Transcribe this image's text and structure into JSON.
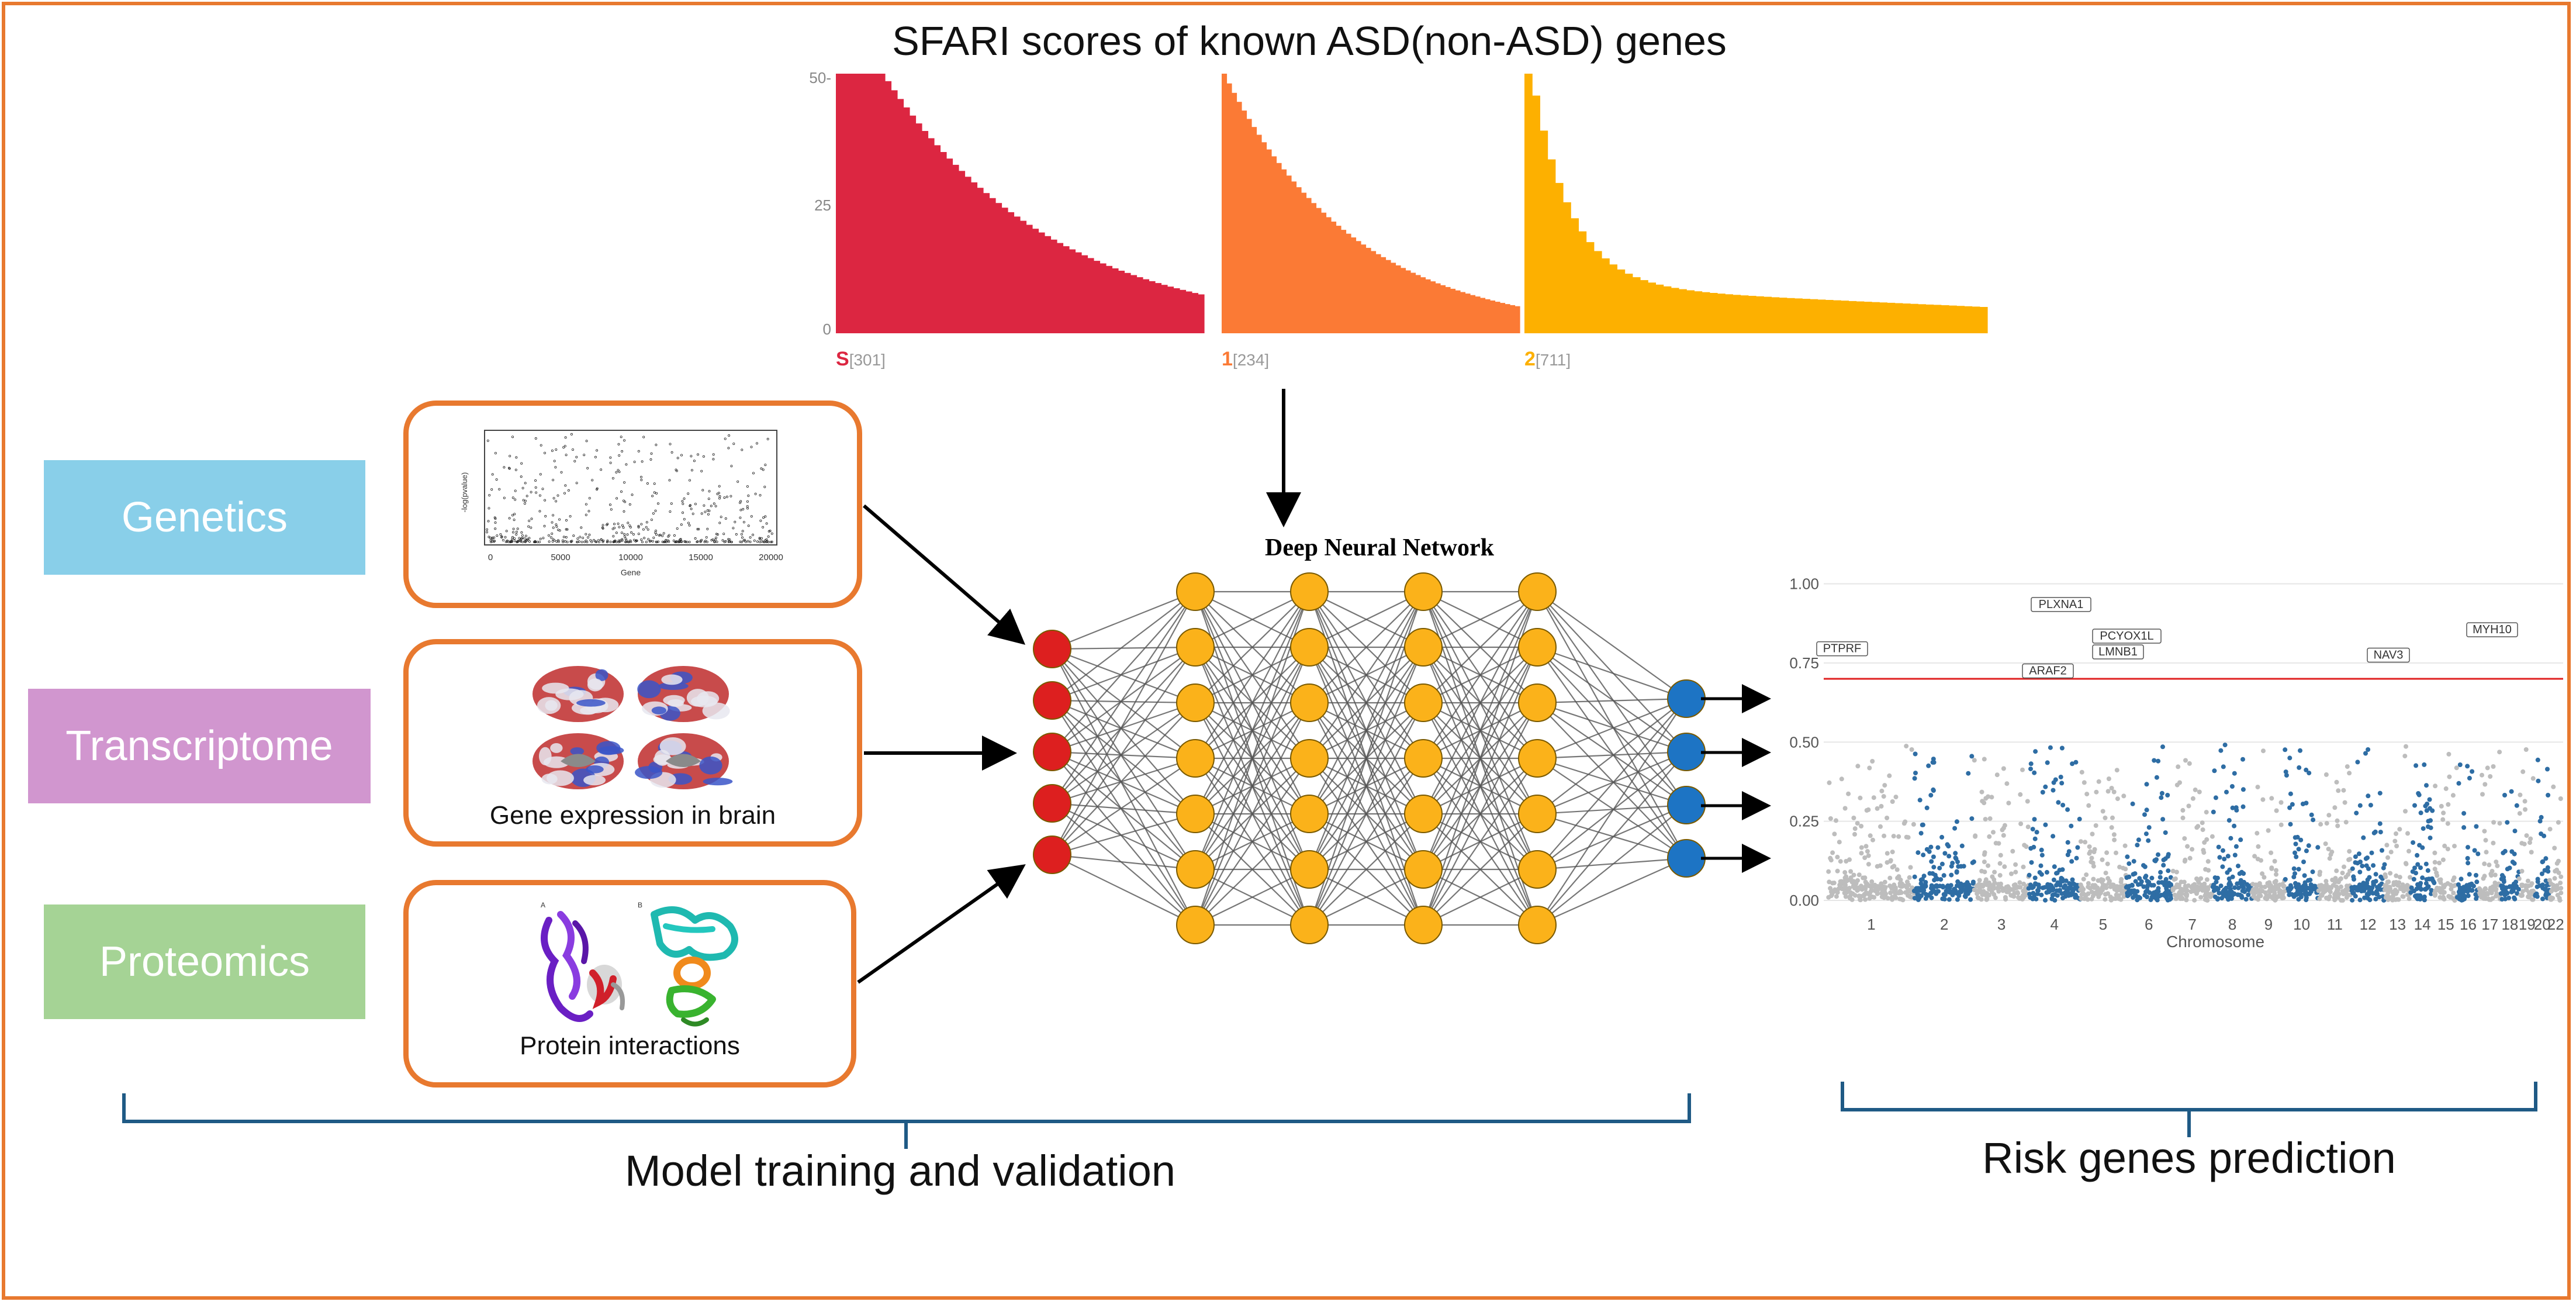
{
  "title": "SFARI scores of known ASD(non-ASD) genes",
  "categories": [
    {
      "label": "Genetics",
      "color": "#89cfe9"
    },
    {
      "label": "Transcriptome",
      "color": "#d196cf"
    },
    {
      "label": "Proteomics",
      "color": "#a5d395"
    }
  ],
  "panels": {
    "genetics": {
      "xlabel": "Gene",
      "ylabel": "-log(pvalue)",
      "xticks": [
        "0",
        "5000",
        "10000",
        "15000",
        "20000"
      ]
    },
    "transcriptome": {
      "caption": "Gene expression in brain"
    },
    "proteomics": {
      "caption": "Protein interactions",
      "tag_a": "A",
      "tag_b": "B"
    }
  },
  "network_title": "Deep Neural Network",
  "sfari_chart": {
    "y_ticks": [
      "50-",
      "25",
      "0"
    ],
    "groups": [
      {
        "label": "S",
        "count": "[301]",
        "color": "#dc2641"
      },
      {
        "label": "1",
        "count": "[234]",
        "color": "#fb7a35"
      },
      {
        "label": "2",
        "count": "[711]",
        "color": "#fdb000"
      }
    ]
  },
  "manhattan": {
    "y_ticks": [
      "1.00",
      "0.75",
      "0.50",
      "0.25",
      "0.00"
    ],
    "x_ticks": [
      "1",
      "2",
      "3",
      "4",
      "5",
      "6",
      "7",
      "8",
      "9",
      "10",
      "11",
      "12",
      "13",
      "14",
      "15",
      "16",
      "17",
      "18",
      "19",
      "20",
      "22"
    ],
    "xlabel": "Chromosome",
    "threshold": 0.7,
    "gene_labels": [
      "PTPRF",
      "PLXNA1",
      "PCYOX1L",
      "LMNB1",
      "ARAF2",
      "NAV3",
      "MYH10"
    ]
  },
  "footer": {
    "left": "Model training and validation",
    "right": "Risk genes prediction"
  },
  "colors": {
    "accent": "#e8792f",
    "bracket": "#1f5a85",
    "input_node": "#dd1f1f",
    "hidden_node": "#fbb21a",
    "output_node": "#1d74c4",
    "manhattan_grey": "#bdbdbd",
    "manhattan_blue": "#2e6da4",
    "threshold_line": "#e02020"
  }
}
